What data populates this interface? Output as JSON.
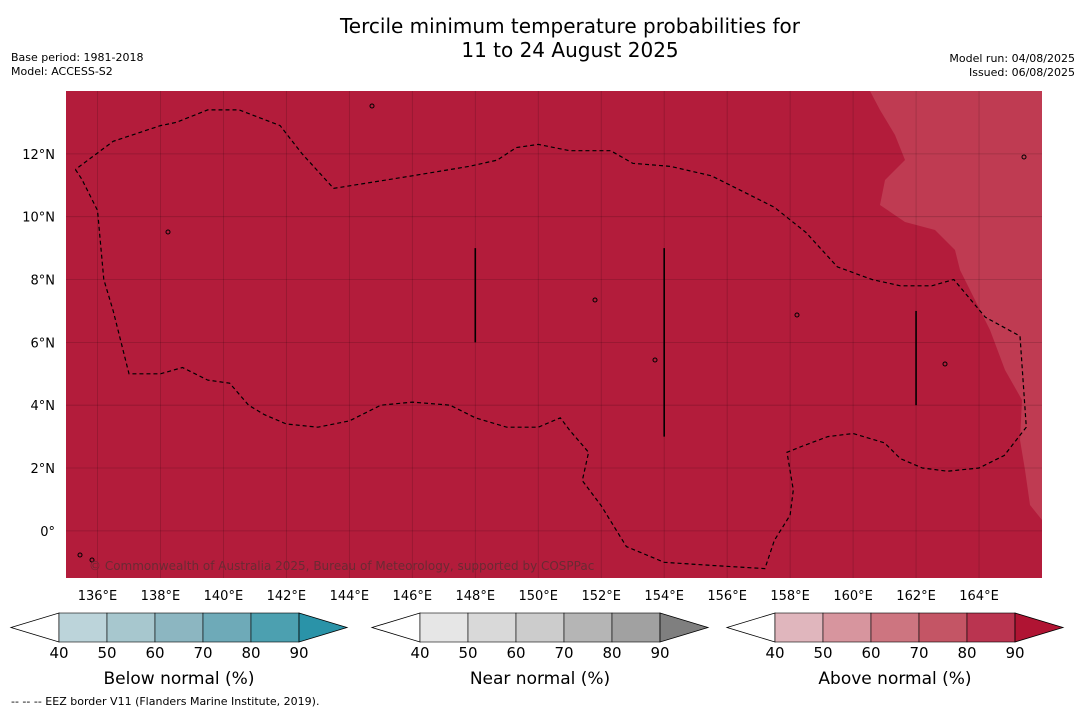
{
  "title_line1": "Tercile minimum temperature probabilities for",
  "title_line2": "11 to 24 August 2025",
  "base_period": "Base period: 1981-2018",
  "model": "Model: ACCESS-S2",
  "model_run": "Model run: 04/08/2025",
  "issued": "Issued: 06/08/2025",
  "copyright": "© Commonwealth of Australia 2025, Bureau of Meteorology, supported by COSPPac",
  "footnote": "-- -- -- EEZ border V11 (Flanders Marine Institute, 2019).",
  "map": {
    "lon_range": [
      135,
      166
    ],
    "lat_range": [
      -1.5,
      14
    ],
    "lon_ticks": [
      {
        "value": 136,
        "label": "136°E"
      },
      {
        "value": 138,
        "label": "138°E"
      },
      {
        "value": 140,
        "label": "140°E"
      },
      {
        "value": 142,
        "label": "142°E"
      },
      {
        "value": 144,
        "label": "144°E"
      },
      {
        "value": 146,
        "label": "146°E"
      },
      {
        "value": 148,
        "label": "148°E"
      },
      {
        "value": 150,
        "label": "150°E"
      },
      {
        "value": 152,
        "label": "152°E"
      },
      {
        "value": 154,
        "label": "154°E"
      },
      {
        "value": 156,
        "label": "156°E"
      },
      {
        "value": 158,
        "label": "158°E"
      },
      {
        "value": 160,
        "label": "160°E"
      },
      {
        "value": 162,
        "label": "162°E"
      },
      {
        "value": 164,
        "label": "164°E"
      }
    ],
    "lat_ticks": [
      {
        "value": 12,
        "label": "12°N"
      },
      {
        "value": 10,
        "label": "10°N"
      },
      {
        "value": 8,
        "label": "8°N"
      },
      {
        "value": 6,
        "label": "6°N"
      },
      {
        "value": 4,
        "label": "4°N"
      },
      {
        "value": 2,
        "label": "2°N"
      },
      {
        "value": 0,
        "label": "0°"
      }
    ],
    "field_color_90plus": "#b31c3b",
    "field_color_80_90": "#bf3b52",
    "grid": true,
    "eez_border": [
      [
        135.3,
        11.5
      ],
      [
        135.5,
        11.2
      ],
      [
        136,
        10.2
      ],
      [
        136.2,
        8
      ],
      [
        136.5,
        7
      ],
      [
        137,
        5
      ],
      [
        138,
        5
      ],
      [
        138.7,
        5.2
      ],
      [
        139.5,
        4.8
      ],
      [
        140.2,
        4.7
      ],
      [
        140.8,
        4
      ],
      [
        141.3,
        3.7
      ],
      [
        142,
        3.4
      ],
      [
        143,
        3.3
      ],
      [
        144,
        3.5
      ],
      [
        145,
        4
      ],
      [
        146,
        4.1
      ],
      [
        147.2,
        4
      ],
      [
        148,
        3.6
      ],
      [
        149,
        3.3
      ],
      [
        150,
        3.3
      ],
      [
        150.7,
        3.6
      ],
      [
        151,
        3.2
      ],
      [
        151.6,
        2.5
      ],
      [
        151.4,
        1.6
      ],
      [
        152,
        0.8
      ],
      [
        152.8,
        -0.5
      ],
      [
        154,
        -1
      ],
      [
        155.5,
        -1.1
      ],
      [
        157.2,
        -1.2
      ],
      [
        157.5,
        -0.3
      ],
      [
        158,
        0.5
      ],
      [
        158.1,
        1.3
      ],
      [
        157.9,
        2.5
      ],
      [
        158.4,
        2.7
      ],
      [
        159.2,
        3
      ],
      [
        160,
        3.1
      ],
      [
        161,
        2.8
      ],
      [
        161.5,
        2.3
      ],
      [
        162.2,
        2
      ],
      [
        163,
        1.9
      ],
      [
        164,
        2
      ],
      [
        164.8,
        2.4
      ],
      [
        165.5,
        3.3
      ],
      [
        165.3,
        6.2
      ],
      [
        164.2,
        6.8
      ],
      [
        163.2,
        8
      ],
      [
        162.5,
        7.8
      ],
      [
        161.5,
        7.8
      ],
      [
        160.6,
        8
      ],
      [
        159.5,
        8.4
      ],
      [
        158.5,
        9.5
      ],
      [
        157.5,
        10.3
      ],
      [
        156.5,
        10.8
      ],
      [
        155.5,
        11.3
      ],
      [
        154.2,
        11.6
      ],
      [
        153,
        11.7
      ],
      [
        152.3,
        12.1
      ],
      [
        151.5,
        12.1
      ],
      [
        151,
        12.1
      ],
      [
        150,
        12.3
      ],
      [
        149.3,
        12.2
      ],
      [
        148.7,
        11.8
      ],
      [
        147.8,
        11.6
      ],
      [
        146,
        11.3
      ],
      [
        143.5,
        10.9
      ],
      [
        142.5,
        12
      ],
      [
        141.8,
        12.9
      ],
      [
        140.5,
        13.4
      ],
      [
        139.5,
        13.4
      ],
      [
        138.5,
        13
      ],
      [
        138,
        12.9
      ],
      [
        136.5,
        12.4
      ],
      [
        135.3,
        11.5
      ]
    ],
    "coast_ticks": [
      {
        "lon": 148,
        "lat_from": 6,
        "lat_to": 9
      },
      {
        "lon": 154,
        "lat_from": 3,
        "lat_to": 9
      },
      {
        "lon": 162,
        "lat_from": 4,
        "lat_to": 7
      }
    ]
  },
  "colorbars": [
    {
      "title": "Below normal (%)",
      "labels": [
        "40",
        "50",
        "60",
        "70",
        "80",
        "90"
      ],
      "colors": [
        "#ffffff",
        "#bcd4da",
        "#a7c7ce",
        "#8cb6c1",
        "#6eaab8",
        "#4ca0b0",
        "#2a93a8"
      ]
    },
    {
      "title": "Near normal (%)",
      "labels": [
        "40",
        "50",
        "60",
        "70",
        "80",
        "90"
      ],
      "colors": [
        "#ffffff",
        "#e6e6e6",
        "#d9d9d9",
        "#cccccc",
        "#b5b5b5",
        "#a1a1a1",
        "#7f7f7f"
      ]
    },
    {
      "title": "Above normal (%)",
      "labels": [
        "40",
        "50",
        "60",
        "70",
        "80",
        "90"
      ],
      "colors": [
        "#ffffff",
        "#e0b6bd",
        "#d7959e",
        "#cd7580",
        "#c45565",
        "#ba3450",
        "#b01433"
      ]
    }
  ]
}
